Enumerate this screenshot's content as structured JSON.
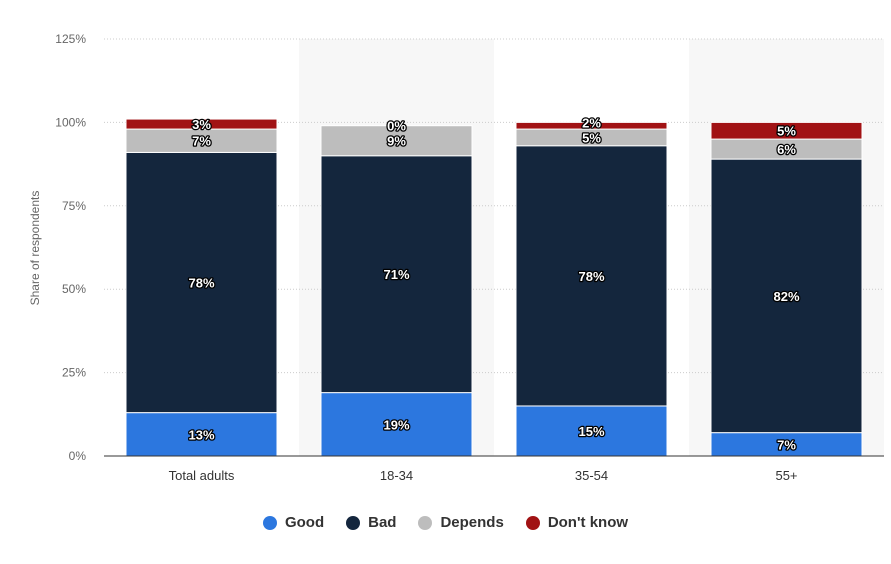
{
  "chart_data": {
    "type": "bar",
    "stacked": true,
    "title": "",
    "xlabel": "",
    "ylabel": "Share of respondents",
    "ylim": [
      0,
      125
    ],
    "yticks": [
      0,
      25,
      50,
      75,
      100,
      125
    ],
    "ytick_labels": [
      "0%",
      "25%",
      "50%",
      "75%",
      "100%",
      "125%"
    ],
    "grid": true,
    "legend_position": "bottom",
    "categories": [
      "Total adults",
      "18-34",
      "35-54",
      "55+"
    ],
    "series": [
      {
        "name": "Good",
        "color": "#2c77df",
        "values": [
          13,
          19,
          15,
          7
        ],
        "labels": [
          "13%",
          "19%",
          "15%",
          "7%"
        ]
      },
      {
        "name": "Bad",
        "color": "#14263d",
        "values": [
          78,
          71,
          78,
          82
        ],
        "labels": [
          "78%",
          "71%",
          "78%",
          "82%"
        ]
      },
      {
        "name": "Depends",
        "color": "#bdbdbd",
        "values": [
          7,
          9,
          5,
          6
        ],
        "labels": [
          "7%",
          "9%",
          "5%",
          "6%"
        ]
      },
      {
        "name": "Don't know",
        "color": "#a11214",
        "values": [
          3,
          0,
          2,
          5
        ],
        "labels": [
          "3%",
          "0%",
          "2%",
          "5%"
        ]
      }
    ]
  }
}
